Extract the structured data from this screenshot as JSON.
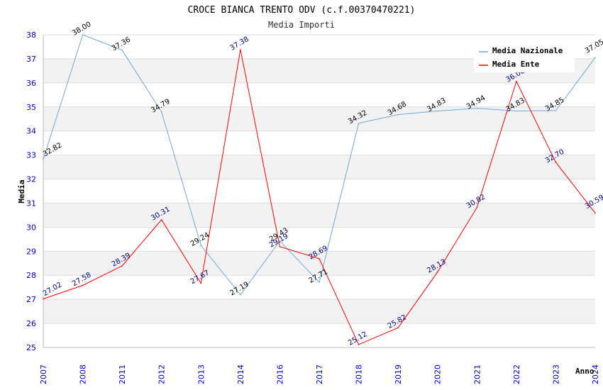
{
  "chart_data": {
    "type": "line",
    "title": "CROCE BIANCA TRENTO ODV (c.f.00370470221)",
    "subtitle": "Media Importi",
    "xlabel": "Anno",
    "ylabel": "Media",
    "categories": [
      "2007",
      "2008",
      "2011",
      "2012",
      "2013",
      "2014",
      "2016",
      "2017",
      "2018",
      "2019",
      "2020",
      "2021",
      "2022",
      "2023",
      "2024"
    ],
    "ylim": [
      25,
      38
    ],
    "yticks": [
      25,
      26,
      27,
      28,
      29,
      30,
      31,
      32,
      33,
      34,
      35,
      36,
      37,
      38
    ],
    "grid": true,
    "legend_position": "top-right",
    "series": [
      {
        "name": "Media Nazionale",
        "color": "#6fa8dc",
        "label_color": "#000000",
        "values": [
          32.82,
          38.0,
          37.36,
          34.79,
          29.24,
          27.19,
          29.43,
          27.71,
          34.32,
          34.68,
          34.83,
          34.94,
          34.83,
          34.85,
          37.05
        ],
        "labels": [
          "32.82",
          "38.00",
          "37.36",
          "34.79",
          "29.24",
          "27.19",
          "29.43",
          "27.71",
          "34.32",
          "34.68",
          "34.83",
          "34.94",
          "34.83",
          "34.85",
          "37.05"
        ]
      },
      {
        "name": "Media Ente",
        "color": "#ff0000",
        "label_color": "#00008b",
        "values": [
          27.02,
          27.58,
          28.39,
          30.31,
          27.67,
          37.38,
          29.19,
          28.69,
          25.12,
          25.82,
          28.13,
          30.82,
          36.06,
          32.7,
          30.59
        ],
        "labels": [
          "27.02",
          "27.58",
          "28.39",
          "30.31",
          "27.67",
          "37.38",
          "29.19",
          "28.69",
          "25.12",
          "25.82",
          "28.13",
          "30.82",
          "36.06",
          "32.70",
          "30.59"
        ]
      }
    ]
  }
}
